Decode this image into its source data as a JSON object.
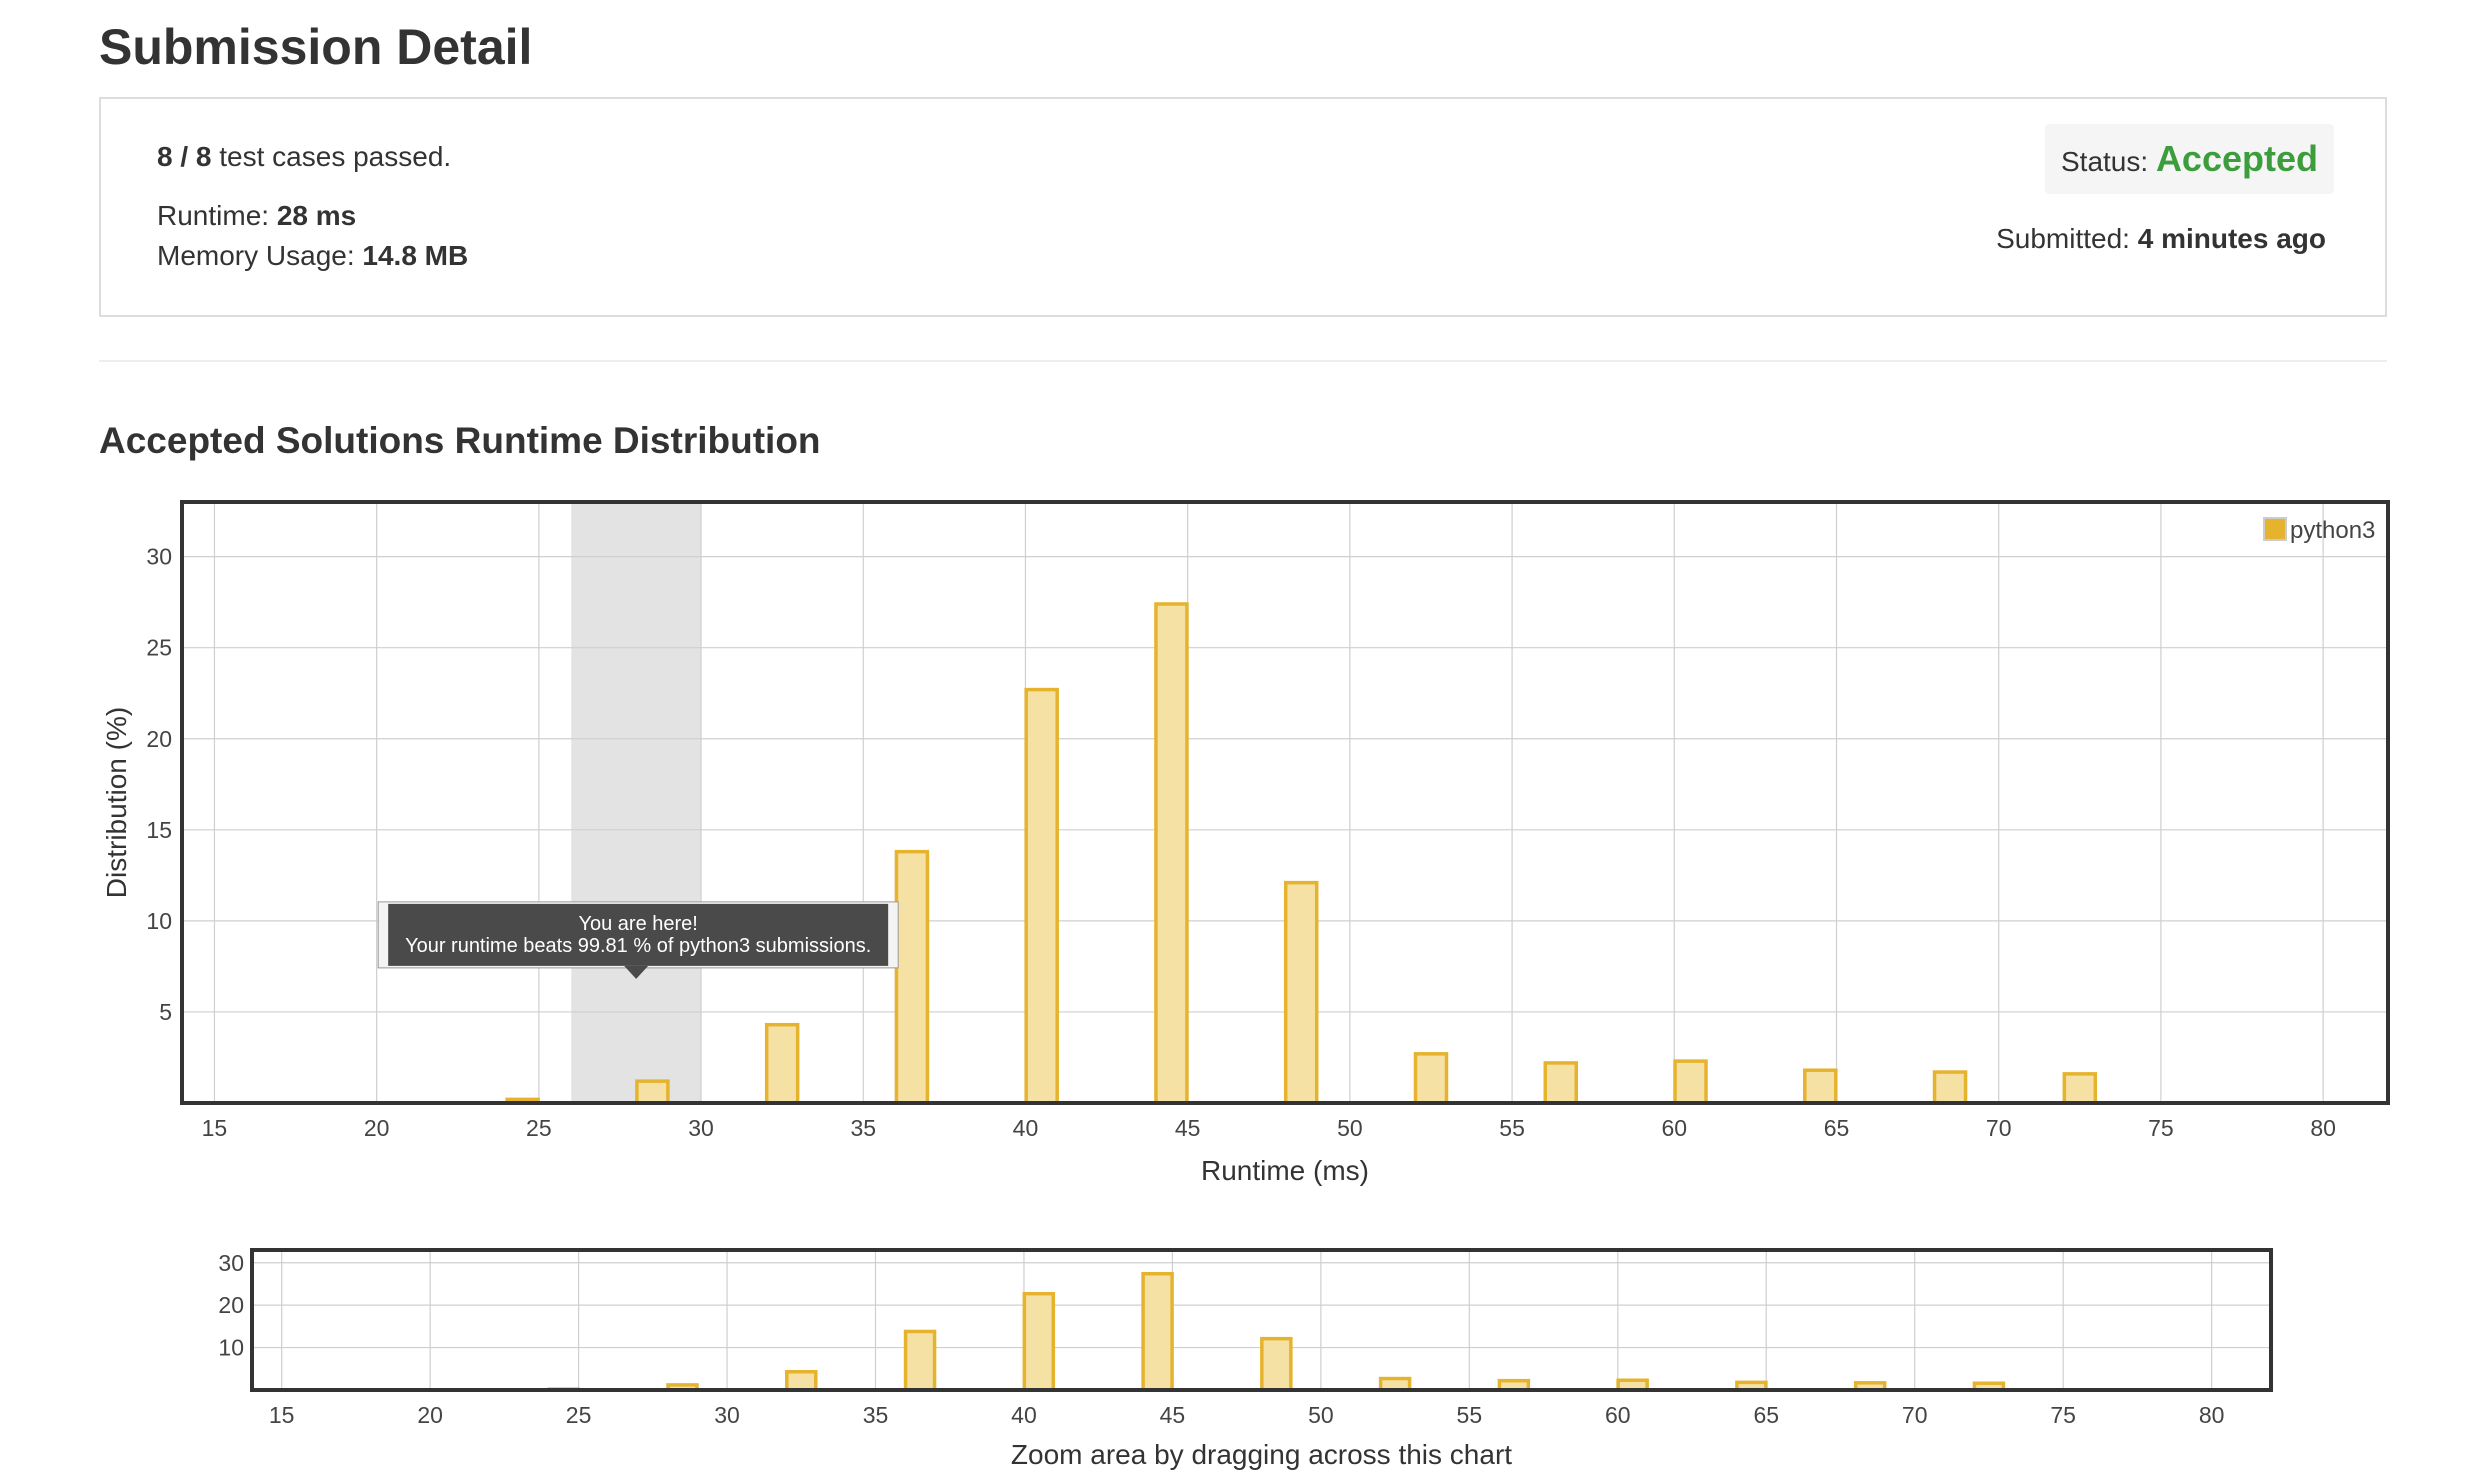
{
  "page_title": "Submission Detail",
  "summary": {
    "cases_count": "8 / 8",
    "cases_suffix": " test cases passed.",
    "runtime_label": "Runtime: ",
    "runtime_value": "28 ms",
    "memory_label": "Memory Usage: ",
    "memory_value": "14.8 MB",
    "status_label": "Status: ",
    "status_value": "Accepted",
    "submitted_label": "Submitted: ",
    "submitted_value": "4 minutes ago"
  },
  "section_title": "Accepted Solutions Runtime Distribution",
  "tooltip": {
    "line1": "You are here!",
    "line2": "Your runtime beats 99.81 % of python3 submissions."
  },
  "zoom_hint": "Zoom area by dragging across this chart",
  "colors": {
    "accent": "#e6b32e",
    "bar_fill": "#f5e1a4",
    "status_accepted": "#3c9d3c",
    "highlight_band": "#e3e3e3"
  },
  "chart_data": [
    {
      "type": "bar",
      "series": [
        {
          "name": "python3",
          "x": [
            24,
            28,
            32,
            36,
            40,
            44,
            48,
            52,
            56,
            60,
            64,
            68,
            72
          ],
          "values": [
            0.2,
            1.2,
            4.3,
            13.8,
            22.7,
            27.4,
            12.1,
            2.7,
            2.2,
            2.3,
            1.8,
            1.7,
            1.6
          ]
        }
      ],
      "highlight_range": [
        26,
        30
      ],
      "xlabel": "Runtime (ms)",
      "ylabel": "Distribution (%)",
      "xlim": [
        14,
        82
      ],
      "ylim": [
        0,
        33
      ],
      "xticks": [
        15,
        20,
        25,
        30,
        35,
        40,
        45,
        50,
        55,
        60,
        65,
        70,
        75,
        80
      ],
      "yticks": [
        5,
        10,
        15,
        20,
        25,
        30
      ],
      "grid": true,
      "legend": "top-right"
    },
    {
      "type": "bar",
      "series": [
        {
          "name": "python3",
          "x": [
            24,
            28,
            32,
            36,
            40,
            44,
            48,
            52,
            56,
            60,
            64,
            68,
            72
          ],
          "values": [
            0.2,
            1.2,
            4.3,
            13.8,
            22.7,
            27.4,
            12.1,
            2.7,
            2.2,
            2.3,
            1.8,
            1.7,
            1.6
          ]
        }
      ],
      "xlabel": "Zoom area by dragging across this chart",
      "xlim": [
        14,
        82
      ],
      "ylim": [
        0,
        33
      ],
      "xticks": [
        15,
        20,
        25,
        30,
        35,
        40,
        45,
        50,
        55,
        60,
        65,
        70,
        75,
        80
      ],
      "yticks": [
        10,
        20,
        30
      ],
      "grid": true
    }
  ]
}
